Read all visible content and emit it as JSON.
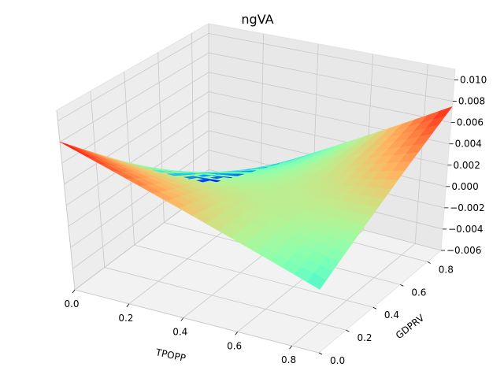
{
  "chart_data": {
    "type": "surface3d",
    "title": "ngVA",
    "xlabel": "TPOPP",
    "ylabel": "GDPRV",
    "zlabel": "",
    "colormap": "rainbow",
    "grid": true,
    "xlim": [
      0.0,
      0.9
    ],
    "ylim": [
      0.0,
      0.9
    ],
    "zlim": [
      -0.006,
      0.011
    ],
    "x_ticks": [
      "0.0",
      "0.2",
      "0.4",
      "0.6",
      "0.8"
    ],
    "y_ticks": [
      "0.0",
      "0.2",
      "0.4",
      "0.6",
      "0.8"
    ],
    "z_ticks": [
      "0.010",
      "0.008",
      "0.006",
      "0.004",
      "0.002",
      "0.000",
      "−0.002",
      "−0.004",
      "−0.006"
    ],
    "corner_values": [
      {
        "x": 0.0,
        "y": 0.0,
        "z": 0.008
      },
      {
        "x": 0.9,
        "y": 0.0,
        "z": 0.0
      },
      {
        "x": 0.0,
        "y": 0.9,
        "z": -0.0055
      },
      {
        "x": 0.9,
        "y": 0.9,
        "z": 0.0075
      }
    ]
  }
}
